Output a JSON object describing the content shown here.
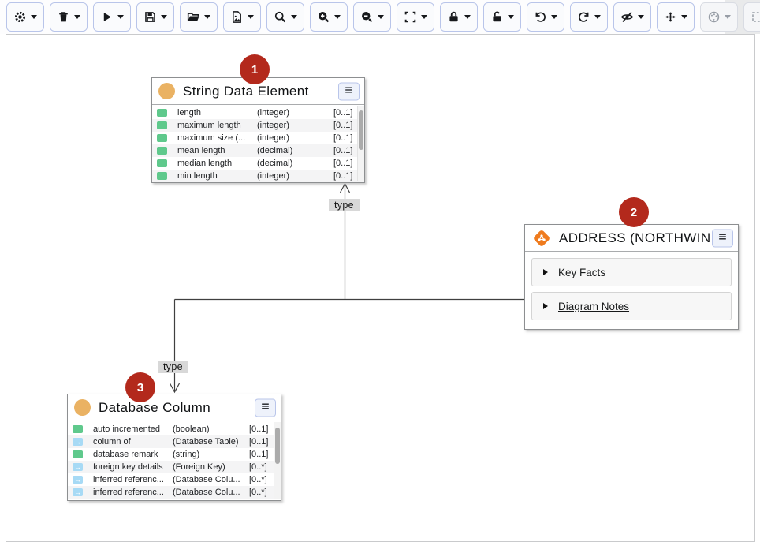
{
  "toolbar": {
    "buttons": [
      {
        "id": "settings",
        "icon": "gear-icon"
      },
      {
        "id": "delete",
        "icon": "trash-icon"
      },
      {
        "id": "play",
        "icon": "play-icon"
      },
      {
        "id": "save",
        "icon": "save-icon"
      },
      {
        "id": "open",
        "icon": "folder-open-icon"
      },
      {
        "id": "export-image",
        "icon": "file-image-icon",
        "caret": true
      },
      {
        "id": "search",
        "icon": "search-icon"
      },
      {
        "id": "zoom-in",
        "icon": "zoom-in-icon"
      },
      {
        "id": "zoom-out",
        "icon": "zoom-out-icon"
      },
      {
        "id": "fit-to-screen",
        "icon": "fit-screen-icon"
      },
      {
        "id": "lock",
        "icon": "lock-icon"
      },
      {
        "id": "unlock",
        "icon": "unlock-icon"
      },
      {
        "id": "undo",
        "icon": "undo-icon"
      },
      {
        "id": "redo",
        "icon": "redo-icon"
      },
      {
        "id": "hide",
        "icon": "eye-off-icon"
      },
      {
        "id": "move",
        "icon": "move-icon",
        "caret": true
      },
      {
        "id": "color",
        "icon": "palette-icon",
        "caret": true,
        "disabled": true
      },
      {
        "id": "selection",
        "icon": "selection-box-icon",
        "caret": true,
        "disabled": true
      },
      {
        "id": "expand",
        "icon": "expand-icon"
      },
      {
        "id": "collapse",
        "icon": "collapse-icon"
      }
    ]
  },
  "canvas": {
    "badges": [
      "1",
      "2",
      "3"
    ],
    "edges": [
      {
        "label": "type"
      },
      {
        "label": "type"
      }
    ],
    "nodes": {
      "string_data_element": {
        "title": "String Data Element",
        "header_icon": "data-element-circle-icon",
        "rows": [
          {
            "icon": "attribute-icon",
            "name": "length",
            "type": "(integer)",
            "card": "[0..1]"
          },
          {
            "icon": "attribute-icon",
            "name": "maximum length",
            "type": "(integer)",
            "card": "[0..1]"
          },
          {
            "icon": "attribute-icon",
            "name": "maximum size (...",
            "type": "(integer)",
            "card": "[0..1]"
          },
          {
            "icon": "attribute-icon",
            "name": "mean length",
            "type": "(decimal)",
            "card": "[0..1]"
          },
          {
            "icon": "attribute-icon",
            "name": "median length",
            "type": "(decimal)",
            "card": "[0..1]"
          },
          {
            "icon": "attribute-icon",
            "name": "min length",
            "type": "(integer)",
            "card": "[0..1]"
          }
        ]
      },
      "address": {
        "title": "ADDRESS (NORTHWIN...",
        "header_icon": "entity-diamond-icon",
        "sections": [
          {
            "label": "Key Facts",
            "link": false
          },
          {
            "label": "Diagram Notes",
            "link": true
          }
        ]
      },
      "database_column": {
        "title": "Database Column",
        "header_icon": "data-element-circle-icon",
        "rows": [
          {
            "icon": "attribute-icon",
            "name": "auto incremented",
            "type": "(boolean)",
            "card": "[0..1]"
          },
          {
            "icon": "relation-icon",
            "name": "column of",
            "type": "(Database Table)",
            "card": "[0..1]"
          },
          {
            "icon": "attribute-icon",
            "name": "database remark",
            "type": "(string)",
            "card": "[0..1]"
          },
          {
            "icon": "relation-icon",
            "name": "foreign key details",
            "type": "(Foreign Key)",
            "card": "[0..*]"
          },
          {
            "icon": "relation-icon",
            "name": "inferred referenc...",
            "type": "(Database Colu...",
            "card": "[0..*]"
          },
          {
            "icon": "relation-icon",
            "name": "inferred referenc...",
            "type": "(Database Colu...",
            "card": "[0..*]"
          }
        ]
      }
    }
  },
  "colors": {
    "badge_red": "#b3291c",
    "entity_orange": "#ef7b1e",
    "attribute_green": "#5fc98c",
    "relation_blue": "#a7daf5",
    "type_circle_tan": "#eab263",
    "toolbar_button_border": "#b9c5ea",
    "edge_line": "#3f3f3f"
  }
}
